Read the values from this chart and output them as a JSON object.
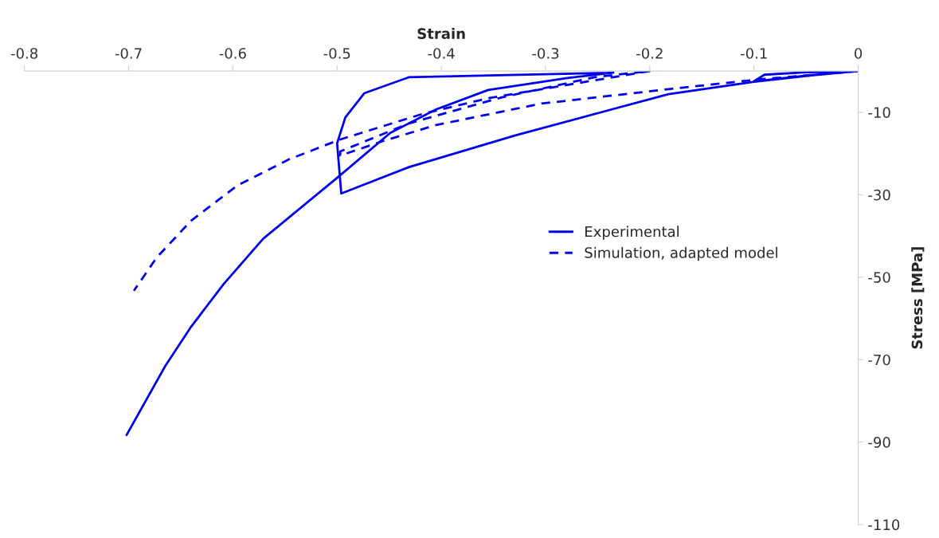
{
  "chart_data": {
    "type": "line",
    "xlabel": "Strain",
    "ylabel": "Stress [MPa]",
    "xlim": [
      -0.8,
      0
    ],
    "xticks": [
      -0.8,
      -0.7,
      -0.6,
      -0.5,
      -0.4,
      -0.3,
      -0.2,
      -0.1,
      0
    ],
    "ylim": [
      -110,
      0
    ],
    "yticks": [
      -10,
      -30,
      -50,
      -70,
      -90,
      -110
    ],
    "grid": false,
    "legend": "right",
    "series": [
      {
        "name": "Experimental",
        "color": "#0000ee",
        "line_style": "solid",
        "x": [
          0,
          -0.05,
          -0.1,
          -0.09,
          -0.05,
          0,
          -0.05,
          -0.1,
          -0.182,
          -0.329,
          -0.431,
          -0.496,
          -0.5,
          -0.492,
          -0.474,
          -0.431,
          -0.235,
          -0.279,
          -0.355,
          -0.405,
          -0.449,
          -0.5,
          -0.571,
          -0.609,
          -0.64,
          -0.665,
          -0.702
        ],
        "values": [
          0,
          -1.1,
          -2.5,
          -0.9,
          -0.3,
          0,
          -1.2,
          -2.6,
          -5.6,
          -15.6,
          -23.3,
          -29.7,
          -17.5,
          -11.2,
          -5.4,
          -1.5,
          -0.4,
          -1.7,
          -4.6,
          -9.3,
          -15,
          -25.9,
          -40.7,
          -51.7,
          -62,
          -71.6,
          -88.3
        ]
      },
      {
        "name": "Simulation, adapted model",
        "color": "#0000ee",
        "line_style": "dashed",
        "x": [
          0,
          -0.098,
          -0.182,
          -0.304,
          -0.405,
          -0.456,
          -0.497,
          -0.497,
          -0.431,
          -0.342,
          -0.253,
          -0.2,
          -0.355,
          -0.418,
          -0.497,
          -0.546,
          -0.596,
          -0.64,
          -0.673,
          -0.695
        ],
        "values": [
          0,
          -2.1,
          -4.4,
          -7.9,
          -13.1,
          -17,
          -20.5,
          -19.5,
          -12.7,
          -6.4,
          -1.5,
          0,
          -6.6,
          -10.4,
          -16.6,
          -21.4,
          -27.8,
          -36.3,
          -45.2,
          -53.3
        ]
      }
    ]
  }
}
